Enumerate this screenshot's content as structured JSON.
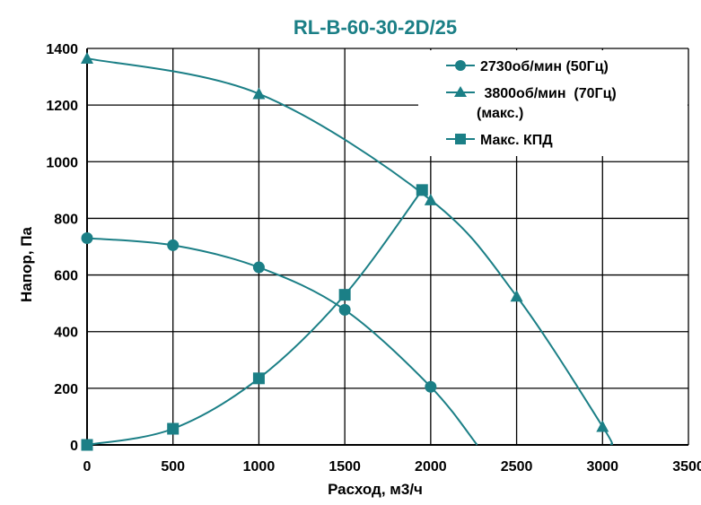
{
  "chart_data": {
    "type": "line",
    "title": "RL-B-60-30-2D/25",
    "xlabel": "Расход, м3/ч",
    "ylabel": "Напор, Па",
    "xlim": [
      0,
      3500
    ],
    "ylim": [
      0,
      1400
    ],
    "xticks": [
      "0",
      "500",
      "1000",
      "1500",
      "2000",
      "2500",
      "3000",
      "3500"
    ],
    "yticks": [
      "0",
      "200",
      "400",
      "600",
      "800",
      "1000",
      "1200",
      "1400"
    ],
    "grid": true,
    "legend_position": "top-right",
    "series": [
      {
        "name": "2730об/мин (50Гц)",
        "marker": "circle",
        "color": "#1b7f86",
        "points": [
          [
            0,
            730
          ],
          [
            500,
            705
          ],
          [
            1000,
            627
          ],
          [
            1500,
            477
          ],
          [
            2000,
            205
          ]
        ],
        "curve_end": [
          2270,
          0
        ]
      },
      {
        "name": " 3800об/мин  (70Гц)",
        "name_line2": "(макс.)",
        "marker": "triangle",
        "color": "#1b7f86",
        "points": [
          [
            0,
            1365
          ],
          [
            1000,
            1240
          ],
          [
            2000,
            865
          ],
          [
            2500,
            525
          ],
          [
            3000,
            65
          ]
        ],
        "curve_end": [
          3050,
          0
        ]
      },
      {
        "name": "Макс. КПД",
        "marker": "square",
        "color": "#1b7f86",
        "points": [
          [
            0,
            0
          ],
          [
            500,
            57
          ],
          [
            1000,
            235
          ],
          [
            1500,
            530
          ],
          [
            1950,
            900
          ]
        ]
      }
    ]
  }
}
